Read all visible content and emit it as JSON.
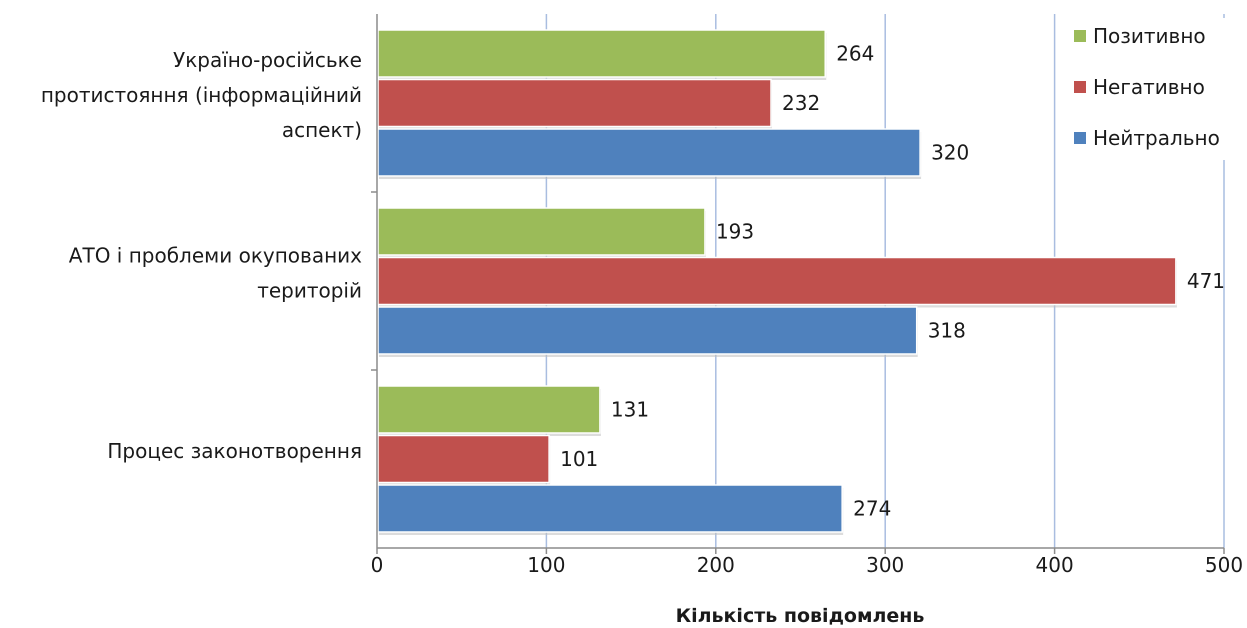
{
  "chart_data": {
    "type": "bar",
    "orientation": "horizontal",
    "categories": [
      [
        "Україно-російське",
        "протистояння (інформаційний",
        "аспект)"
      ],
      [
        "АТО і проблеми окупованих",
        "територій"
      ],
      [
        "Процес законотворення"
      ]
    ],
    "series": [
      {
        "name": "Позитивно",
        "color": "#9bbb59",
        "values": [
          264,
          193,
          131
        ]
      },
      {
        "name": "Негативно",
        "color": "#c0504d",
        "values": [
          232,
          471,
          101
        ]
      },
      {
        "name": "Нейтрально",
        "color": "#4f81bd",
        "values": [
          320,
          318,
          274
        ]
      }
    ],
    "xlim": [
      0,
      500
    ],
    "xticks": [
      0,
      100,
      200,
      300,
      400,
      500
    ],
    "xlabel": "Кількість повідомлень",
    "ylabel": "",
    "title": "",
    "grid": true,
    "legend": "top-right",
    "data_labels": true
  }
}
